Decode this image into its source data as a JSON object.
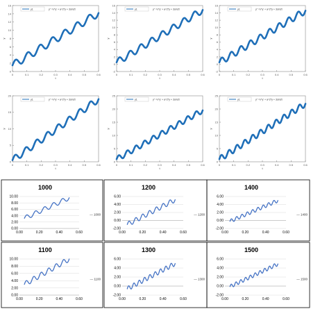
{
  "chart_data": [
    {
      "type": "line",
      "style": "matlab",
      "legend": "y1",
      "annotation": "y'' =x*y' + a^2*y + 3sin2t",
      "xlabel": "t",
      "ylabel": "y",
      "xlim": [
        0,
        0.6
      ],
      "ylim": [
        0,
        16
      ],
      "xticks": [
        "0",
        "0.1",
        "0.2",
        "0.3",
        "0.4",
        "0.5",
        "0.6"
      ],
      "yticks": [
        "0",
        "2",
        "4",
        "6",
        "8",
        "10",
        "12",
        "14",
        "16"
      ],
      "color": "#1f6fb8",
      "y_start": 1.5,
      "y_end": 14.2,
      "waves": 7,
      "amp": 0.9
    },
    {
      "type": "line",
      "style": "matlab",
      "legend": "y1",
      "annotation": "y'' =x*y' + a^2*y + 3sin2t",
      "xlabel": "t",
      "ylabel": "y",
      "xlim": [
        0,
        0.6
      ],
      "ylim": [
        -2,
        16
      ],
      "xticks": [
        "0",
        "0.1",
        "0.2",
        "0.3",
        "0.4",
        "0.5",
        "0.6"
      ],
      "yticks": [
        "-2",
        "0",
        "2",
        "4",
        "6",
        "8",
        "10",
        "12",
        "14",
        "16"
      ],
      "color": "#1f6fb8",
      "y_start": 0.5,
      "y_end": 14.8,
      "waves": 8,
      "amp": 0.9
    },
    {
      "type": "line",
      "style": "matlab",
      "legend": "y1",
      "annotation": "y'' =x*y' + a^2*y + 3sin2t",
      "xlabel": "t",
      "ylabel": "y",
      "xlim": [
        0,
        0.6
      ],
      "ylim": [
        -2,
        16
      ],
      "xticks": [
        "0",
        "0.1",
        "0.2",
        "0.3",
        "0.4",
        "0.5",
        "0.6"
      ],
      "yticks": [
        "-2",
        "0",
        "2",
        "4",
        "6",
        "8",
        "10",
        "12",
        "14",
        "16"
      ],
      "color": "#1f6fb8",
      "y_start": 0.5,
      "y_end": 14.6,
      "waves": 9,
      "amp": 0.9
    },
    {
      "type": "line",
      "style": "matlab",
      "legend": "y1",
      "annotation": "y'' =x*y' + a^2*y + 3sin2t",
      "xlabel": "t",
      "ylabel": "y",
      "xlim": [
        0,
        0.6
      ],
      "ylim": [
        0,
        20
      ],
      "xticks": [
        "0",
        "0.1",
        "0.2",
        "0.3",
        "0.4",
        "0.5",
        "0.6"
      ],
      "yticks": [
        "0",
        "5",
        "10",
        "15",
        "20"
      ],
      "color": "#1f6fb8",
      "y_start": 0.5,
      "y_end": 19.0,
      "waves": 8,
      "amp": 1.0
    },
    {
      "type": "line",
      "style": "matlab",
      "legend": "y1",
      "annotation": "y'' =x*y' + a^2*y + 3sin2t",
      "xlabel": "t",
      "ylabel": "y",
      "xlim": [
        0,
        0.6
      ],
      "ylim": [
        0,
        25
      ],
      "xticks": [
        "0",
        "0.1",
        "0.2",
        "0.3",
        "0.4",
        "0.5",
        "0.6"
      ],
      "yticks": [
        "0",
        "5",
        "10",
        "15",
        "20",
        "25"
      ],
      "color": "#1f6fb8",
      "y_start": 1.0,
      "y_end": 19.5,
      "waves": 10,
      "amp": 1.0
    },
    {
      "type": "line",
      "style": "matlab",
      "legend": "y1",
      "annotation": "y'' =x*y' + a^2*y + 3sin2t",
      "xlabel": "t",
      "ylabel": "y",
      "xlim": [
        0,
        0.6
      ],
      "ylim": [
        0,
        25
      ],
      "xticks": [
        "0",
        "0.1",
        "0.2",
        "0.3",
        "0.4",
        "0.5",
        "0.6"
      ],
      "yticks": [
        "0",
        "5",
        "10",
        "15",
        "20",
        "25"
      ],
      "color": "#1f6fb8",
      "y_start": 1.0,
      "y_end": 22.0,
      "waves": 11,
      "amp": 1.1
    },
    {
      "type": "line",
      "style": "excel",
      "title": "1000",
      "series_label": "1000",
      "xlim": [
        0,
        0.6
      ],
      "ylim": [
        0,
        10
      ],
      "xticks": [
        "0.00",
        "0.20",
        "0.40",
        "0.60"
      ],
      "yticks": [
        "0.00",
        "2.00",
        "4.00",
        "6.00",
        "8.00",
        "10.00"
      ],
      "color": "#4472c4",
      "x_start": 0.05,
      "x_end": 0.5,
      "y_start": 3.2,
      "y_end": 9.6,
      "waves": 5,
      "amp": 0.7
    },
    {
      "type": "line",
      "style": "excel",
      "title": "1200",
      "series_label": "1200",
      "xlim": [
        0,
        0.6
      ],
      "ylim": [
        -2,
        6
      ],
      "xticks": [
        "0.00",
        "0.20",
        "0.40",
        "0.60"
      ],
      "yticks": [
        "-2.00",
        "0.00",
        "2.00",
        "4.00",
        "6.00"
      ],
      "color": "#4472c4",
      "x_start": 0.05,
      "x_end": 0.52,
      "y_start": -1.0,
      "y_end": 5.2,
      "waves": 7,
      "amp": 0.6
    },
    {
      "type": "line",
      "style": "excel",
      "title": "1400",
      "series_label": "1400",
      "xlim": [
        0,
        0.6
      ],
      "ylim": [
        -2,
        6
      ],
      "xticks": [
        "0.00",
        "0.20",
        "0.40",
        "0.60"
      ],
      "yticks": [
        "-2.00",
        "0.00",
        "2.00",
        "4.00",
        "6.00"
      ],
      "color": "#4472c4",
      "x_start": 0.05,
      "x_end": 0.52,
      "y_start": -0.2,
      "y_end": 5.0,
      "waves": 9,
      "amp": 0.45
    },
    {
      "type": "line",
      "style": "excel",
      "title": "1100",
      "series_label": "1100",
      "xlim": [
        0,
        0.6
      ],
      "ylim": [
        0,
        10
      ],
      "xticks": [
        "0.00",
        "0.20",
        "0.40",
        "0.60"
      ],
      "yticks": [
        "0.00",
        "2.00",
        "4.00",
        "6.00",
        "8.00",
        "10.00"
      ],
      "color": "#4472c4",
      "x_start": 0.05,
      "x_end": 0.5,
      "y_start": 3.0,
      "y_end": 10.0,
      "waves": 6,
      "amp": 0.7
    },
    {
      "type": "line",
      "style": "excel",
      "title": "1300",
      "series_label": "1300",
      "xlim": [
        0,
        0.6
      ],
      "ylim": [
        -2,
        6
      ],
      "xticks": [
        "0.00",
        "0.20",
        "0.40",
        "0.60"
      ],
      "yticks": [
        "-2.00",
        "0.00",
        "2.00",
        "4.00",
        "6.00"
      ],
      "color": "#4472c4",
      "x_start": 0.05,
      "x_end": 0.52,
      "y_start": -0.6,
      "y_end": 5.0,
      "waves": 9,
      "amp": 0.5
    },
    {
      "type": "line",
      "style": "excel",
      "title": "1500",
      "series_label": "1500",
      "xlim": [
        0,
        0.6
      ],
      "ylim": [
        -2,
        6
      ],
      "xticks": [
        "0.00",
        "0.20",
        "0.40",
        "0.60"
      ],
      "yticks": [
        "-2.00",
        "0.00",
        "2.00",
        "4.00",
        "6.00"
      ],
      "color": "#4472c4",
      "x_start": 0.05,
      "x_end": 0.52,
      "y_start": -0.1,
      "y_end": 4.9,
      "waves": 10,
      "amp": 0.4
    }
  ]
}
